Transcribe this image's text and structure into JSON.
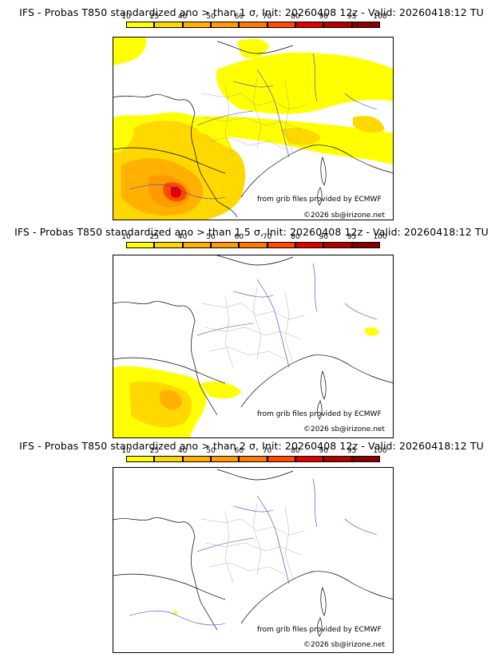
{
  "colorscale": {
    "labels": [
      "10",
      "25",
      "40",
      "50",
      "60",
      "70",
      "80",
      "90",
      "95",
      "100"
    ],
    "colors": [
      "#ffff00",
      "#ffd800",
      "#ffb000",
      "#ff9a00",
      "#ff7800",
      "#ff4a00",
      "#e00000",
      "#b00000",
      "#8a0000",
      "#5a0000"
    ]
  },
  "panels": [
    {
      "title": "IFS - Probas T850  standardized ano > than 1 σ, Init: 20260408 12z - Valid: 20260418:12 TU",
      "credit_source": "from grib files provided by ECMWF",
      "copyright": "©2026 sb@irizone.net"
    },
    {
      "title": "IFS - Probas T850  standardized ano > than 1.5 σ, Init: 20260408 12z - Valid: 20260418:12 TU",
      "credit_source": "from grib files provided by ECMWF",
      "copyright": "©2026 sb@irizone.net"
    },
    {
      "title": "IFS - Probas T850  standardized ano > than 2 σ, Init: 20260408 12z - Valid: 20260418:12 TU",
      "credit_source": "from grib files provided by ECMWF",
      "copyright": "©2026 sb@irizone.net"
    }
  ]
}
